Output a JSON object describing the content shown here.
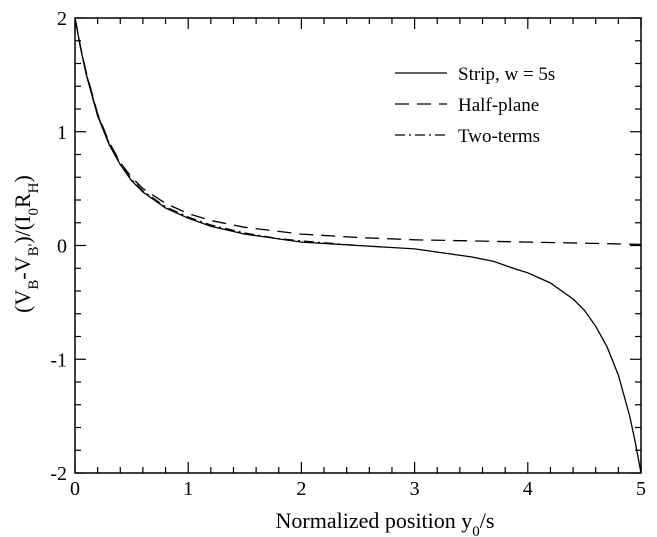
{
  "chart_data": {
    "type": "line",
    "title": "",
    "xlabel": "Normalized position y0/s",
    "ylabel": "(VB-VB')/(I0RH)",
    "xlim": [
      0,
      5
    ],
    "ylim": [
      -2,
      2
    ],
    "x_ticks": [
      0,
      1,
      2,
      3,
      4,
      5
    ],
    "y_ticks": [
      -2,
      -1,
      0,
      1,
      2
    ],
    "x_tick_labels": [
      "0",
      "1",
      "2",
      "3",
      "4",
      "5"
    ],
    "y_tick_labels": [
      "-2",
      "-1",
      "0",
      "1",
      "2"
    ],
    "grid": false,
    "legend_position": "top-right",
    "series": [
      {
        "name": "Strip, w = 5s",
        "style": "solid",
        "x": [
          0.0,
          0.05,
          0.1,
          0.2,
          0.3,
          0.4,
          0.5,
          0.6,
          0.8,
          1.0,
          1.2,
          1.5,
          2.0,
          2.5,
          3.0,
          3.5,
          3.7,
          3.9,
          4.0,
          4.2,
          4.4,
          4.5,
          4.6,
          4.7,
          4.8,
          4.9,
          4.95,
          5.0
        ],
        "y": [
          2.0,
          1.73,
          1.5,
          1.14,
          0.89,
          0.71,
          0.57,
          0.47,
          0.33,
          0.24,
          0.17,
          0.1,
          0.03,
          0.0,
          -0.03,
          -0.1,
          -0.14,
          -0.21,
          -0.24,
          -0.33,
          -0.47,
          -0.57,
          -0.71,
          -0.89,
          -1.14,
          -1.5,
          -1.73,
          -2.0
        ]
      },
      {
        "name": "Half-plane",
        "style": "dashed",
        "x": [
          0.0,
          0.05,
          0.1,
          0.2,
          0.3,
          0.4,
          0.5,
          0.6,
          0.8,
          1.0,
          1.2,
          1.5,
          2.0,
          2.5,
          3.0,
          3.5,
          4.0,
          4.5,
          5.0
        ],
        "y": [
          2.0,
          1.74,
          1.52,
          1.16,
          0.91,
          0.73,
          0.6,
          0.5,
          0.37,
          0.28,
          0.22,
          0.16,
          0.1,
          0.07,
          0.05,
          0.04,
          0.03,
          0.02,
          0.01
        ]
      },
      {
        "name": "Two-terms",
        "style": "dash-dot",
        "x": [
          0.0,
          0.05,
          0.1,
          0.2,
          0.3,
          0.4,
          0.5,
          0.6,
          0.8,
          1.0,
          1.2,
          1.5,
          1.8,
          2.0,
          2.5
        ],
        "y": [
          2.0,
          1.73,
          1.51,
          1.15,
          0.9,
          0.72,
          0.58,
          0.48,
          0.34,
          0.25,
          0.18,
          0.11,
          0.06,
          0.04,
          0.0
        ]
      }
    ]
  }
}
